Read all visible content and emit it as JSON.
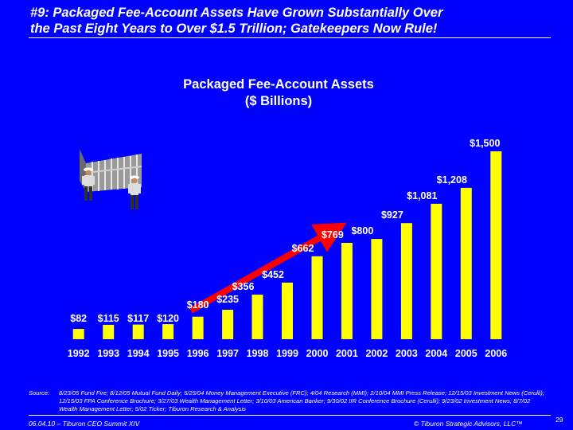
{
  "headline": {
    "line1": "#9: Packaged Fee-Account Assets Have Grown Substantially Over",
    "line2": "the Past Eight Years to Over $1.5 Trillion; Gatekeepers Now Rule!"
  },
  "colors": {
    "background": "#0000ff",
    "bar": "#ffff00",
    "arrow": "#ff0000",
    "text": "#ffffff"
  },
  "chart_data": {
    "type": "bar",
    "title": "Packaged Fee-Account Assets",
    "subtitle": "($ Billions)",
    "categories": [
      "1992",
      "1993",
      "1994",
      "1995",
      "1996",
      "1997",
      "1998",
      "1999",
      "2000",
      "2001",
      "2002",
      "2003",
      "2004",
      "2005",
      "2006"
    ],
    "values": [
      82,
      115,
      117,
      120,
      180,
      235,
      356,
      452,
      662,
      769,
      800,
      927,
      1081,
      1208,
      1500
    ],
    "value_labels": [
      "$82",
      "$115",
      "$117",
      "$120",
      "$180",
      "$235",
      "$356",
      "$452",
      "$662",
      "$769",
      "$800",
      "$927",
      "$1,081",
      "$1,208",
      "$1,500"
    ],
    "ylim": [
      0,
      1560
    ],
    "annotation": "red upward trend arrow",
    "illustration": "two guards at a gate"
  },
  "source": {
    "label": "Source:",
    "text": "8/23/05 Fund Fire; 8/12/05 Mutual Fund Daily; 5/25/04 Money Management Executive (FRC); 4/04 Research (MMI); 2/10/04 MMI Press Release; 12/15/03 Investment News (Cerulli); 12/15/03 FPA Conference Brochure; 3/27/03 Wealth Management Letter; 3/10/03 American Banker; 9/30/02 IIR Conference Brochure (Cerulli); 9/23/02 Investment News; 8/7/02 Wealth Management Letter; 5/02 Ticker; Tiburon Research & Analysis"
  },
  "footer": {
    "left": "06.04.10 – Tiburon CEO Summit XIV",
    "right": "© Tiburon Strategic Advisors, LLC™",
    "page": "29"
  }
}
